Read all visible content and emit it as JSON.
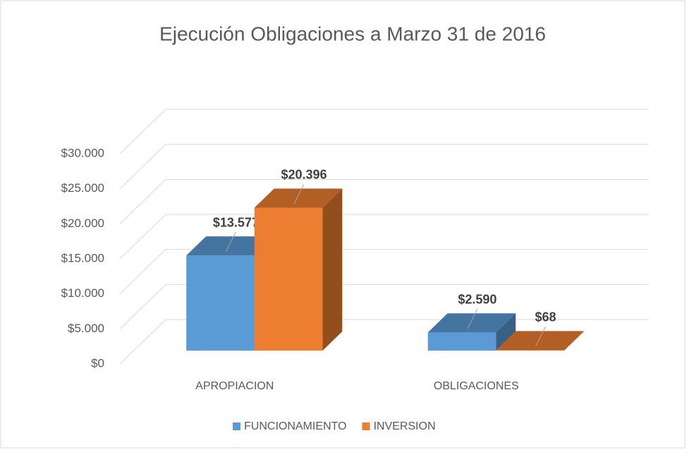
{
  "chart_data": {
    "type": "bar3d",
    "title": "Ejecución Obligaciones a Marzo  31 de 2016",
    "categories": [
      "APROPIACION",
      "OBLIGACIONES"
    ],
    "series": [
      {
        "name": "FUNCIONAMIENTO",
        "color": "#5b9bd5",
        "values": [
          13577,
          2590
        ],
        "value_labels": [
          "$13.577",
          "$2.590"
        ]
      },
      {
        "name": "INVERSION",
        "color": "#ed7d31",
        "values": [
          20396,
          68
        ],
        "value_labels": [
          "$20.396",
          "$68"
        ]
      }
    ],
    "ylim": [
      0,
      30000
    ],
    "yticks": [
      {
        "value": 0,
        "label": "$0"
      },
      {
        "value": 5000,
        "label": "$5.000"
      },
      {
        "value": 10000,
        "label": "$10.000"
      },
      {
        "value": 15000,
        "label": "$15.000"
      },
      {
        "value": 20000,
        "label": "$20.000"
      },
      {
        "value": 25000,
        "label": "$25.000"
      },
      {
        "value": 30000,
        "label": "$30.000"
      }
    ],
    "grid": true,
    "legend": "bottom"
  }
}
